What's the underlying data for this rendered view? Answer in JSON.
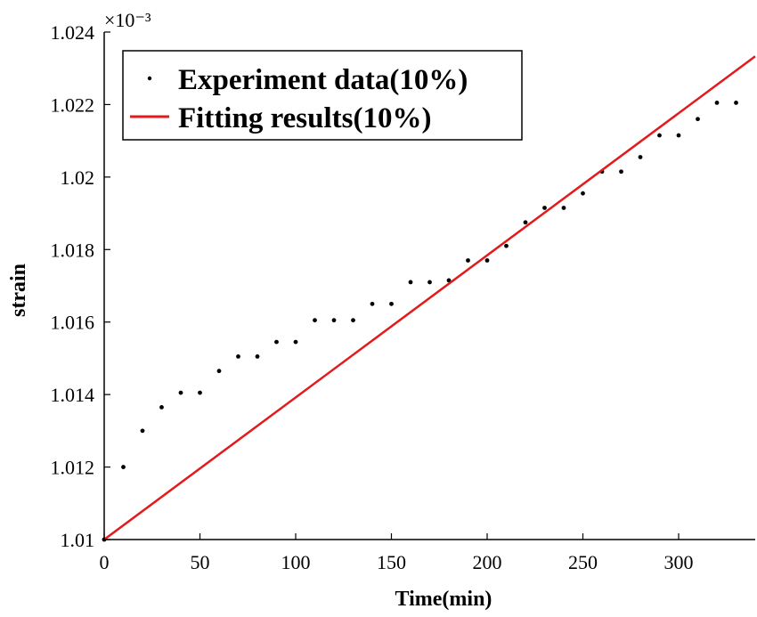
{
  "chart_data": {
    "type": "scatter",
    "xlabel": "Time(min)",
    "ylabel": "strain",
    "exponent_label": "×10⁻³",
    "xlim": [
      0,
      340
    ],
    "ylim": [
      1.01,
      1.024
    ],
    "xticks": [
      0,
      50,
      100,
      150,
      200,
      250,
      300
    ],
    "yticks": [
      1.01,
      1.012,
      1.014,
      1.016,
      1.018,
      1.02,
      1.022,
      1.024
    ],
    "xtick_labels": [
      "0",
      "50",
      "100",
      "150",
      "200",
      "250",
      "300"
    ],
    "ytick_labels": [
      "1.01",
      "1.012",
      "1.014",
      "1.016",
      "1.018",
      "1.02",
      "1.022",
      "1.024"
    ],
    "grid": false,
    "legend_position": "top-left",
    "series": [
      {
        "name": "Experiment data(10%)",
        "kind": "points",
        "color": "#000000",
        "x": [
          0,
          10,
          20,
          30,
          40,
          50,
          60,
          70,
          80,
          90,
          100,
          110,
          120,
          130,
          140,
          150,
          160,
          170,
          180,
          190,
          200,
          210,
          220,
          230,
          240,
          250,
          260,
          270,
          280,
          290,
          300,
          310,
          320,
          330
        ],
        "y": [
          1.01,
          1.012,
          1.013,
          1.01365,
          1.01405,
          1.01405,
          1.01465,
          1.01505,
          1.01505,
          1.01545,
          1.01545,
          1.01605,
          1.01605,
          1.01605,
          1.0165,
          1.0165,
          1.0171,
          1.0171,
          1.01715,
          1.0177,
          1.0177,
          1.0181,
          1.01875,
          1.01915,
          1.01915,
          1.01955,
          1.02015,
          1.02015,
          1.02055,
          1.02115,
          1.02115,
          1.0216,
          1.02205,
          1.02205
        ]
      },
      {
        "name": "Fitting results(10%)",
        "kind": "line",
        "color": "#e31a1c",
        "x": [
          0,
          340
        ],
        "y": [
          1.01,
          1.02333
        ]
      }
    ]
  }
}
